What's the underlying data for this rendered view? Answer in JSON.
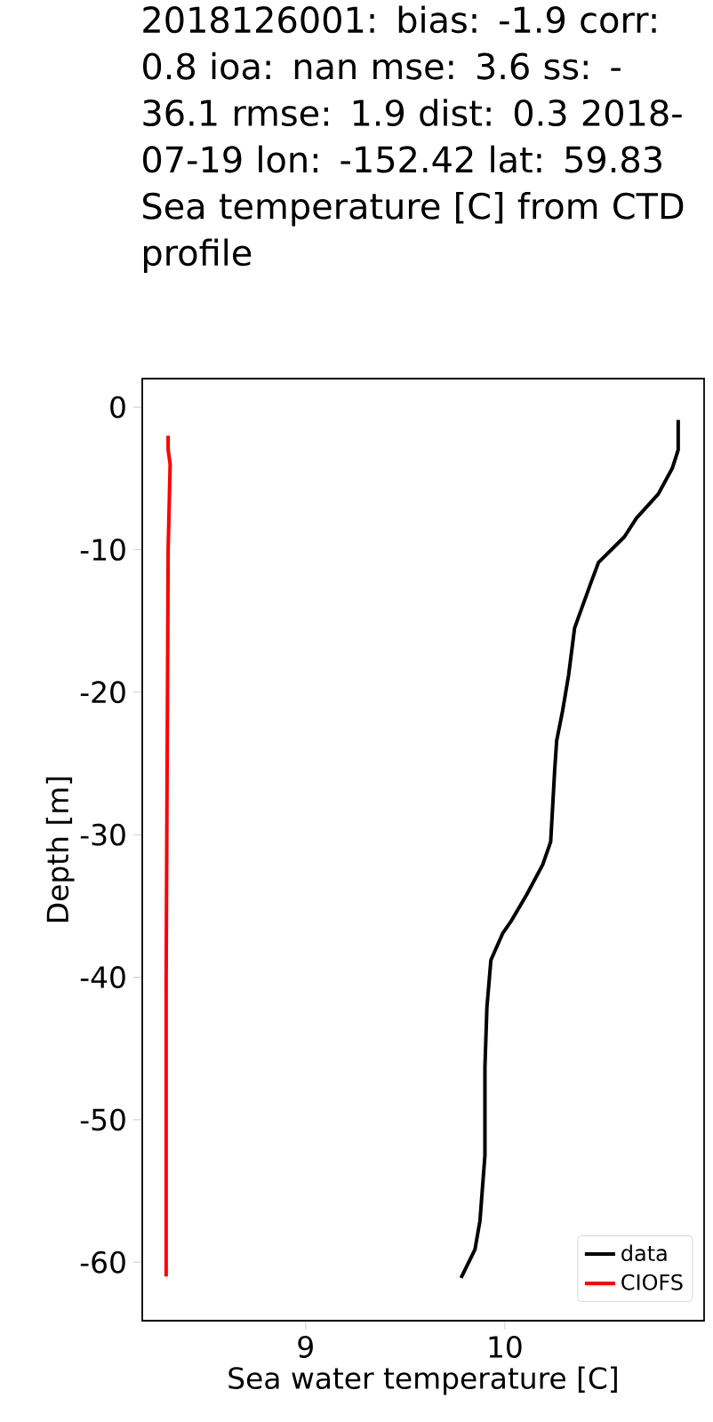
{
  "chart_data": {
    "type": "line",
    "title": "2018126001: bias: -1.9 corr: 0.8  ioa: nan  mse: 3.6 ss: -36.1  rmse: 1.9  dist: 0.3 2018-07-19 lon: -152.42 lat: 59.83 Sea temperature [C] from CTD profile",
    "xlabel": "Sea water temperature [C]",
    "ylabel": "Depth [m]",
    "xlim": [
      8.18,
      11.0
    ],
    "ylim": [
      -64.1,
      2.0
    ],
    "xticks": [
      9,
      10
    ],
    "yticks": [
      0,
      -10,
      -20,
      -30,
      -40,
      -50,
      -60
    ],
    "legend": "bottom right",
    "series": [
      {
        "name": "data",
        "color": "#000000",
        "x": [
          10.87,
          10.87,
          10.84,
          10.77,
          10.66,
          10.6,
          10.47,
          10.43,
          10.35,
          10.32,
          10.29,
          10.26,
          10.25,
          10.23,
          10.19,
          10.11,
          10.03,
          9.99,
          9.93,
          9.91,
          9.9,
          9.9,
          9.875,
          9.85,
          9.78
        ],
        "values": [
          -0.9,
          -3.0,
          -4.3,
          -6.1,
          -7.8,
          -9.1,
          -10.9,
          -12.4,
          -15.5,
          -18.8,
          -21.3,
          -23.4,
          -25.5,
          -30.5,
          -32.1,
          -34.2,
          -36.1,
          -36.9,
          -38.8,
          -42.1,
          -46.3,
          -52.5,
          -57.1,
          -59.1,
          -61.1
        ]
      },
      {
        "name": "CIOFS",
        "color": "#ff0000",
        "x": [
          8.31,
          8.31,
          8.32,
          8.31,
          8.3,
          8.3
        ],
        "values": [
          -2.0,
          -3.0,
          -4.0,
          -10.0,
          -40.0,
          -61.0
        ]
      }
    ]
  }
}
